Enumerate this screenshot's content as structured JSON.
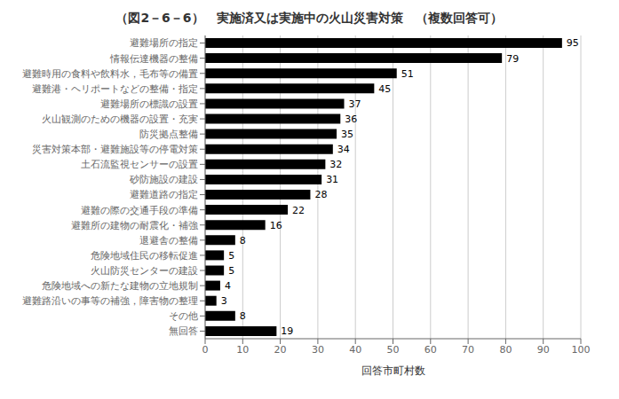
{
  "chart_data": {
    "type": "bar",
    "orientation": "horizontal",
    "title": "（図2－6－6）　実施済又は実施中の火山災害対策　（複数回答可）",
    "xlabel": "回答市町村数",
    "categories": [
      "無回答",
      "その他",
      "避難路沿いの事等の補強，障害物の整理",
      "危険地域への新たな建物の立地規制",
      "火山防災センターの建設",
      "危険地域住民の移転促進",
      "退避舎の整備",
      "避難所の建物の耐震化・補強",
      "避難の際の交通手段の準備",
      "避難道路の指定",
      "砂防施設の建設",
      "土石流監視センサーの設置",
      "災害対策本部・避難施設等の停電対策",
      "防災拠点整備",
      "火山観測のための機器の設置・充実",
      "避難場所の標識の設置",
      "避難港・ヘリポートなどの整備・指定",
      "避難時用の食料や飲料水，毛布等の備置",
      "情報伝達機器の整備",
      "避難場所の指定"
    ],
    "values": [
      19,
      8,
      3,
      4,
      5,
      5,
      8,
      16,
      22,
      28,
      31,
      32,
      34,
      35,
      36,
      37,
      45,
      51,
      79,
      95
    ],
    "color": "#000000",
    "xlim": [
      0,
      100
    ],
    "xticks": [
      0,
      10,
      20,
      30,
      40,
      50,
      60,
      70,
      80,
      90,
      100
    ],
    "grid": true,
    "data_labels": true
  }
}
